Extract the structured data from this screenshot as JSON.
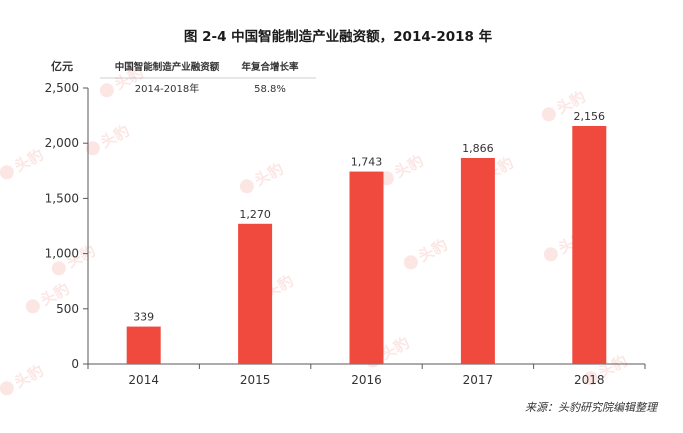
{
  "page_title": "图 2-4 中国智能制造产业融资额，2014-2018 年",
  "source_note": "来源：头豹研究院编辑整理",
  "watermark_text": "头豹",
  "colors": {
    "bar": "#f04a3e",
    "axis": "#595959",
    "watermark": "#e84a3a"
  },
  "summary_table": {
    "headers": [
      "中国智能制造产业融资额",
      "年复合增长率"
    ],
    "row": [
      "2014-2018年",
      "58.8%"
    ]
  },
  "chart_data": {
    "type": "bar",
    "title": "图 2-4 中国智能制造产业融资额，2014-2018 年",
    "ylabel": "亿元",
    "xlabel": "",
    "categories": [
      "2014",
      "2015",
      "2016",
      "2017",
      "2018"
    ],
    "values": [
      339,
      1270,
      1743,
      1866,
      2156
    ],
    "value_labels": [
      "339",
      "1,270",
      "1,743",
      "1,866",
      "2,156"
    ],
    "ylim": [
      0,
      2500
    ],
    "yticks": [
      0,
      500,
      1000,
      1500,
      2000,
      2500
    ],
    "ytick_labels": [
      "0",
      "500",
      "1,000",
      "1,500",
      "2,000",
      "2,500"
    ],
    "grid": false,
    "legend": "none"
  }
}
